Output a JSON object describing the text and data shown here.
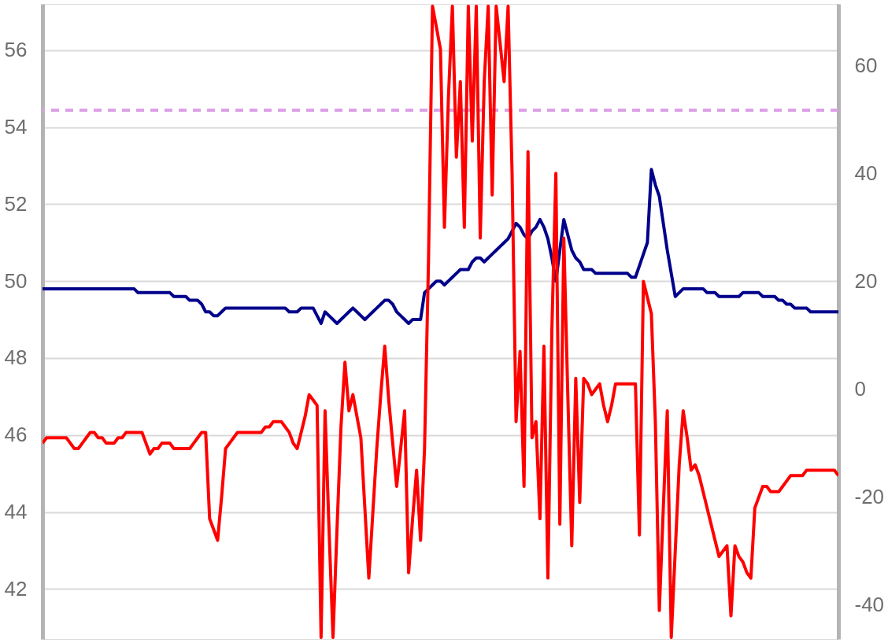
{
  "chart_data": {
    "type": "line",
    "categories": [
      null,
      null,
      null,
      null,
      null,
      null,
      null,
      null,
      null,
      null,
      null,
      null,
      null,
      null,
      null,
      null,
      null,
      null,
      null,
      null,
      null,
      null,
      null,
      null,
      null,
      null,
      null,
      null,
      null,
      null,
      null,
      null,
      null,
      null,
      null,
      null,
      null,
      null,
      null,
      null,
      null,
      null,
      null,
      null,
      null,
      null,
      null,
      null,
      null,
      null,
      null,
      null,
      null,
      null,
      null,
      null,
      null,
      null,
      null,
      null,
      null,
      null,
      null,
      null,
      null,
      null,
      null,
      null,
      null,
      null,
      null,
      null,
      null,
      null,
      null,
      null,
      null,
      null,
      null,
      null,
      null,
      null,
      null,
      null,
      null,
      null,
      null,
      null,
      null,
      null,
      null,
      null,
      null,
      null,
      null,
      null,
      null,
      null,
      null,
      null,
      null,
      null,
      null,
      null,
      null,
      null,
      null,
      null,
      null,
      null,
      null,
      null,
      null,
      null,
      null,
      null,
      null,
      null,
      null,
      null,
      null,
      null,
      null,
      null,
      null,
      null,
      null,
      null,
      null,
      null,
      null,
      null,
      null,
      null,
      null,
      null,
      null,
      null,
      null,
      null,
      null,
      null,
      null,
      null,
      null,
      null,
      null,
      null,
      null,
      null,
      null,
      null,
      null,
      null,
      null,
      null,
      null,
      null,
      null,
      null,
      null,
      null,
      null,
      null,
      null,
      null,
      null,
      null,
      null,
      null,
      null,
      null,
      null,
      null,
      null,
      null,
      null,
      null,
      null,
      null,
      null,
      null,
      null,
      null,
      null,
      null,
      null,
      null,
      null,
      null,
      null,
      null,
      null,
      null,
      null,
      null,
      null,
      null,
      null,
      null,
      null
    ],
    "ylim": [
      40.7,
      57.2
    ],
    "yticks": [
      42,
      44,
      46,
      48,
      50,
      52,
      54,
      56
    ],
    "y2lim": [
      -46.3,
      71.4
    ],
    "y2ticks": [
      -40,
      -20,
      0,
      20,
      40,
      60
    ],
    "grid": "y",
    "line_style": "solid",
    "marker": "none",
    "ref_lines": [
      {
        "axis": "y",
        "value": 54.44,
        "color": "#dca0e6",
        "line_style": "dashed"
      }
    ],
    "series": [
      {
        "color": "#00008b",
        "values": [
          49.8,
          49.8,
          49.8,
          49.8,
          49.8,
          49.8,
          49.8,
          49.8,
          49.8,
          49.8,
          49.8,
          49.8,
          49.8,
          49.8,
          49.8,
          49.8,
          49.8,
          49.8,
          49.8,
          49.8,
          49.8,
          49.8,
          49.8,
          49.8,
          49.7,
          49.7,
          49.7,
          49.7,
          49.7,
          49.7,
          49.7,
          49.7,
          49.7,
          49.6,
          49.6,
          49.6,
          49.6,
          49.5,
          49.5,
          49.5,
          49.4,
          49.2,
          49.2,
          49.1,
          49.1,
          49.2,
          49.3,
          49.3,
          49.3,
          49.3,
          49.3,
          49.3,
          49.3,
          49.3,
          49.3,
          49.3,
          49.3,
          49.3,
          49.3,
          49.3,
          49.3,
          49.3,
          49.2,
          49.2,
          49.2,
          49.3,
          49.3,
          49.3,
          49.3,
          49.1,
          48.9,
          49.2,
          49.1,
          49.0,
          48.9,
          49.0,
          49.1,
          49.2,
          49.3,
          49.2,
          49.1,
          49.0,
          49.1,
          49.2,
          49.3,
          49.4,
          49.5,
          49.5,
          49.4,
          49.2,
          49.1,
          49.0,
          48.9,
          49.0,
          49.0,
          49.0,
          49.7,
          49.8,
          49.9,
          50.0,
          50.0,
          49.9,
          50.0,
          50.1,
          50.2,
          50.3,
          50.3,
          50.3,
          50.5,
          50.6,
          50.6,
          50.5,
          50.6,
          50.7,
          50.8,
          50.9,
          51.0,
          51.1,
          51.3,
          51.5,
          51.4,
          51.2,
          51.1,
          51.3,
          51.4,
          51.6,
          51.4,
          51.1,
          50.6,
          50.0,
          50.8,
          51.6,
          51.2,
          50.8,
          50.6,
          50.5,
          50.3,
          50.3,
          50.3,
          50.2,
          50.2,
          50.2,
          50.2,
          50.2,
          50.2,
          50.2,
          50.2,
          50.2,
          50.1,
          50.1,
          50.4,
          50.7,
          51.0,
          52.9,
          52.5,
          52.2,
          51.5,
          50.8,
          50.2,
          49.6,
          49.7,
          49.8,
          49.8,
          49.8,
          49.8,
          49.8,
          49.8,
          49.7,
          49.7,
          49.7,
          49.6,
          49.6,
          49.6,
          49.6,
          49.6,
          49.6,
          49.7,
          49.7,
          49.7,
          49.7,
          49.7,
          49.6,
          49.6,
          49.6,
          49.6,
          49.5,
          49.5,
          49.4,
          49.4,
          49.3,
          49.3,
          49.3,
          49.3,
          49.2,
          49.2,
          49.2,
          49.2,
          49.2,
          49.2,
          49.2,
          49.2
        ]
      },
      {
        "color": "#ff0000",
        "axis": "y2",
        "values": [
          -10,
          -9,
          -9,
          -9,
          -9,
          -9,
          -9,
          -10,
          -11,
          -11,
          -10,
          -9,
          -8,
          -8,
          -9,
          -9,
          -10,
          -10,
          -10,
          -9,
          -9,
          -8,
          -8,
          -8,
          -8,
          -8,
          -10,
          -12,
          -11,
          -11,
          -10,
          -10,
          -10,
          -11,
          -11,
          -11,
          -11,
          -11,
          -10,
          -9,
          -8,
          -8,
          -24,
          -26,
          -28,
          -20,
          -11,
          -10,
          -9,
          -8,
          -8,
          -8,
          -8,
          -8,
          -8,
          -8,
          -7,
          -7,
          -6,
          -6,
          -6,
          -7,
          -8,
          -10,
          -11,
          -8,
          -5,
          -1,
          -2,
          -3,
          -46,
          -4,
          -26,
          -46,
          -26,
          -7,
          5,
          -4,
          -1,
          -5,
          -9,
          -22,
          -35,
          -23,
          -11,
          -1,
          8,
          -2,
          -10,
          -18,
          -11,
          -4,
          -34,
          -24,
          -15,
          -28,
          -11,
          24,
          71,
          67,
          63,
          30,
          54,
          71,
          43,
          57,
          30,
          71,
          46,
          71,
          28,
          57,
          71,
          36,
          71,
          64,
          57,
          71,
          40,
          -6,
          7,
          -18,
          44,
          -9,
          -6,
          -24,
          8,
          -35,
          11,
          40,
          -25,
          28,
          -1,
          -29,
          2,
          -21,
          2,
          1,
          -1,
          0,
          1,
          -3,
          -6,
          -3,
          1,
          1,
          1,
          1,
          1,
          1,
          -27,
          20,
          17,
          14,
          -6,
          -41,
          -22,
          -4,
          -46,
          -30,
          -14,
          -4,
          -9,
          -15,
          -14,
          -16,
          -19,
          -22,
          -25,
          -28,
          -31,
          -30,
          -29,
          -42,
          -29,
          -31,
          -32,
          -34,
          -35,
          -22,
          -20,
          -18,
          -18,
          -19,
          -19,
          -19,
          -18,
          -17,
          -16,
          -16,
          -16,
          -16,
          -15,
          -15,
          -15,
          -15,
          -15,
          -15,
          -15,
          -15,
          -16
        ]
      }
    ]
  }
}
